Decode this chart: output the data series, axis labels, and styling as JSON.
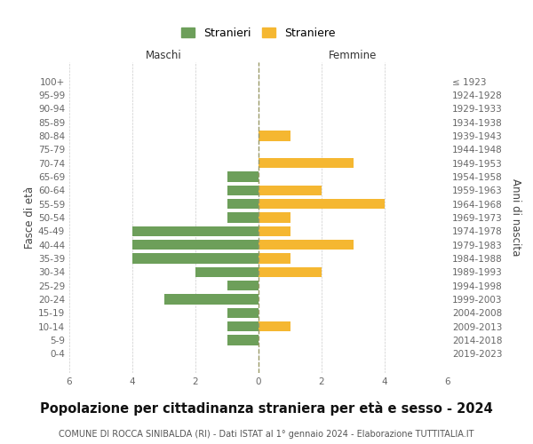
{
  "age_groups": [
    "0-4",
    "5-9",
    "10-14",
    "15-19",
    "20-24",
    "25-29",
    "30-34",
    "35-39",
    "40-44",
    "45-49",
    "50-54",
    "55-59",
    "60-64",
    "65-69",
    "70-74",
    "75-79",
    "80-84",
    "85-89",
    "90-94",
    "95-99",
    "100+"
  ],
  "birth_years": [
    "2019-2023",
    "2014-2018",
    "2009-2013",
    "2004-2008",
    "1999-2003",
    "1994-1998",
    "1989-1993",
    "1984-1988",
    "1979-1983",
    "1974-1978",
    "1969-1973",
    "1964-1968",
    "1959-1963",
    "1954-1958",
    "1949-1953",
    "1944-1948",
    "1939-1943",
    "1934-1938",
    "1929-1933",
    "1924-1928",
    "≤ 1923"
  ],
  "maschi": [
    0,
    1,
    1,
    1,
    3,
    1,
    2,
    4,
    4,
    4,
    1,
    1,
    1,
    1,
    0,
    0,
    0,
    0,
    0,
    0,
    0
  ],
  "femmine": [
    0,
    0,
    1,
    0,
    0,
    0,
    2,
    1,
    3,
    1,
    1,
    4,
    2,
    0,
    3,
    0,
    1,
    0,
    0,
    0,
    0
  ],
  "maschi_color": "#6d9f5a",
  "femmine_color": "#f5b731",
  "background_color": "#ffffff",
  "grid_color": "#cccccc",
  "title": "Popolazione per cittadinanza straniera per età e sesso - 2024",
  "subtitle": "COMUNE DI ROCCA SINIBALDA (RI) - Dati ISTAT al 1° gennaio 2024 - Elaborazione TUTTITALIA.IT",
  "xlabel_left": "Maschi",
  "xlabel_right": "Femmine",
  "ylabel_left": "Fasce di età",
  "ylabel_right": "Anni di nascita",
  "xlim": 6,
  "legend_stranieri": "Stranieri",
  "legend_straniere": "Straniere",
  "bar_height": 0.75,
  "dashed_line_color": "#999966",
  "title_fontsize": 10.5,
  "subtitle_fontsize": 7,
  "axis_label_fontsize": 8.5,
  "tick_fontsize": 7.5,
  "legend_fontsize": 9
}
